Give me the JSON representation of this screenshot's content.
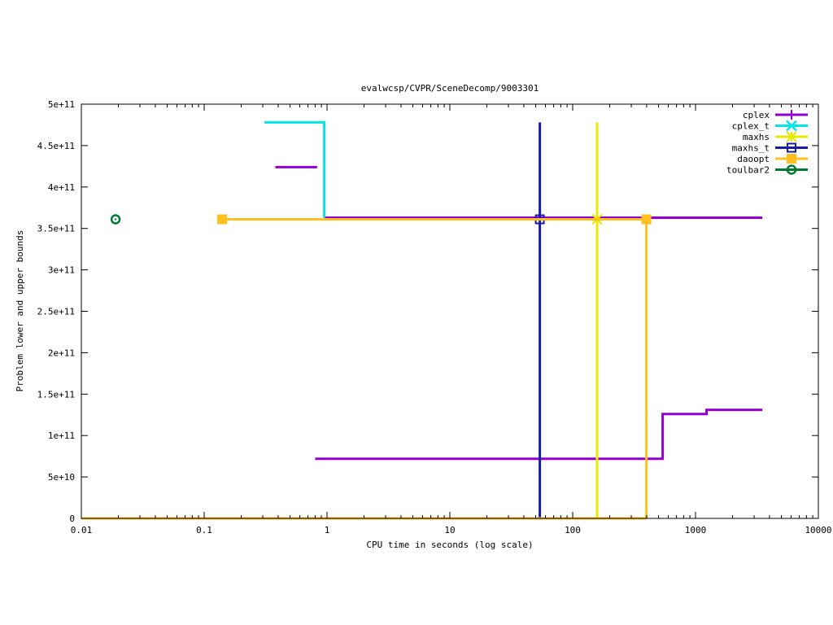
{
  "chart_data": {
    "type": "line",
    "title": "evalwcsp/CVPR/SceneDecomp/9003301",
    "xlabel": "CPU time in seconds (log scale)",
    "ylabel": "Problem lower and upper bounds",
    "xscale": "log",
    "xlim": [
      0.01,
      10000
    ],
    "ylim": [
      0,
      500000000000
    ],
    "grid": false,
    "legend": "top-right",
    "x_ticks": [
      {
        "v": 0.01,
        "label": "0.01"
      },
      {
        "v": 0.1,
        "label": "0.1"
      },
      {
        "v": 1,
        "label": "1"
      },
      {
        "v": 10,
        "label": "10"
      },
      {
        "v": 100,
        "label": "100"
      },
      {
        "v": 1000,
        "label": "1000"
      },
      {
        "v": 10000,
        "label": "10000"
      }
    ],
    "y_ticks": [
      {
        "v": 0,
        "label": "0"
      },
      {
        "v": 50000000000,
        "label": "5e+10"
      },
      {
        "v": 100000000000,
        "label": "1e+11"
      },
      {
        "v": 150000000000,
        "label": "1.5e+11"
      },
      {
        "v": 200000000000,
        "label": "2e+11"
      },
      {
        "v": 250000000000,
        "label": "2.5e+11"
      },
      {
        "v": 300000000000,
        "label": "3e+11"
      },
      {
        "v": 350000000000,
        "label": "3.5e+11"
      },
      {
        "v": 400000000000,
        "label": "4e+11"
      },
      {
        "v": 450000000000,
        "label": "4.5e+11"
      },
      {
        "v": 500000000000,
        "label": "5e+11"
      }
    ],
    "series": [
      {
        "name": "cplex",
        "color": "#9400d3",
        "marker": "plus",
        "segments": [
          [
            [
              0.38,
              424000000000
            ],
            [
              0.83,
              424000000000
            ]
          ],
          [
            [
              0.95,
              363000000000
            ],
            [
              3500,
              363000000000
            ]
          ],
          [
            [
              0.8,
              72000000000
            ],
            [
              540,
              72000000000
            ],
            [
              540,
              126000000000
            ],
            [
              1230,
              126000000000
            ],
            [
              1230,
              131000000000
            ],
            [
              3500,
              131000000000
            ]
          ]
        ],
        "markers": []
      },
      {
        "name": "cplex_t",
        "color": "#00e5e5",
        "marker": "cross",
        "segments": [
          [
            [
              0.31,
              478000000000
            ],
            [
              0.95,
              478000000000
            ],
            [
              0.95,
              363000000000
            ]
          ]
        ],
        "markers": []
      },
      {
        "name": "maxhs",
        "color": "#e8e800",
        "marker": "star",
        "segments": [
          [
            [
              158,
              478000000000
            ],
            [
              158,
              0
            ]
          ]
        ],
        "markers": [
          [
            158,
            361000000000
          ]
        ]
      },
      {
        "name": "maxhs_t",
        "color": "#1a1aaa",
        "marker": "box",
        "segments": [
          [
            [
              54,
              478000000000
            ],
            [
              54,
              0
            ]
          ]
        ],
        "markers": [
          [
            54,
            361000000000
          ]
        ]
      },
      {
        "name": "daoopt",
        "color": "#ffbf1f",
        "marker": "filledbox",
        "segments": [
          [
            [
              0.14,
              361000000000
            ],
            [
              398,
              361000000000
            ],
            [
              398,
              0
            ]
          ],
          [
            [
              0.01,
              0
            ],
            [
              398,
              0
            ]
          ]
        ],
        "markers": [
          [
            0.14,
            361000000000
          ],
          [
            398,
            361000000000
          ]
        ]
      },
      {
        "name": "toulbar2",
        "color": "#007a33",
        "marker": "circle",
        "segments": [],
        "markers": [
          [
            0.019,
            361000000000
          ]
        ]
      }
    ]
  }
}
